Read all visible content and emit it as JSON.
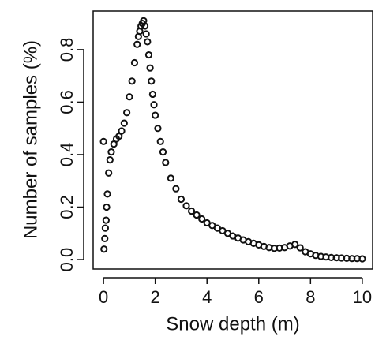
{
  "chart_data": {
    "type": "scatter",
    "x_label": "Snow depth (m)",
    "y_label": "Number of samples (%)",
    "x": [
      0,
      0.02,
      0.05,
      0.07,
      0.1,
      0.12,
      0.15,
      0.2,
      0.25,
      0.3,
      0.4,
      0.5,
      0.6,
      0.7,
      0.8,
      0.9,
      1.0,
      1.1,
      1.2,
      1.3,
      1.35,
      1.4,
      1.45,
      1.5,
      1.55,
      1.6,
      1.65,
      1.7,
      1.75,
      1.8,
      1.85,
      1.9,
      1.95,
      2.0,
      2.1,
      2.2,
      2.3,
      2.4,
      2.6,
      2.8,
      3.0,
      3.2,
      3.4,
      3.6,
      3.8,
      4.0,
      4.2,
      4.4,
      4.6,
      4.8,
      5.0,
      5.2,
      5.4,
      5.6,
      5.8,
      6.0,
      6.2,
      6.4,
      6.6,
      6.8,
      7.0,
      7.2,
      7.4,
      7.6,
      7.8,
      8.0,
      8.2,
      8.4,
      8.6,
      8.8,
      9.0,
      9.2,
      9.4,
      9.6,
      9.8,
      10.0
    ],
    "values": [
      0.45,
      0.04,
      0.08,
      0.12,
      0.15,
      0.2,
      0.25,
      0.33,
      0.38,
      0.41,
      0.44,
      0.46,
      0.47,
      0.49,
      0.52,
      0.56,
      0.62,
      0.68,
      0.75,
      0.82,
      0.85,
      0.87,
      0.89,
      0.9,
      0.91,
      0.89,
      0.86,
      0.83,
      0.78,
      0.73,
      0.68,
      0.63,
      0.59,
      0.55,
      0.5,
      0.45,
      0.41,
      0.37,
      0.31,
      0.27,
      0.23,
      0.205,
      0.185,
      0.17,
      0.155,
      0.14,
      0.13,
      0.12,
      0.11,
      0.1,
      0.09,
      0.082,
      0.075,
      0.068,
      0.062,
      0.056,
      0.05,
      0.046,
      0.043,
      0.044,
      0.046,
      0.052,
      0.058,
      0.045,
      0.03,
      0.022,
      0.016,
      0.012,
      0.01,
      0.008,
      0.007,
      0.006,
      0.005,
      0.004,
      0.004,
      0.003
    ],
    "color": "#111111",
    "xlim": [
      -0.4,
      10.4
    ],
    "ylim": [
      -0.036,
      0.947
    ],
    "xticks": [
      0,
      2,
      4,
      6,
      8,
      10
    ],
    "yticks": [
      {
        "value": 0,
        "label": "0.0"
      },
      0.2,
      0.4,
      0.6,
      0.8
    ]
  }
}
